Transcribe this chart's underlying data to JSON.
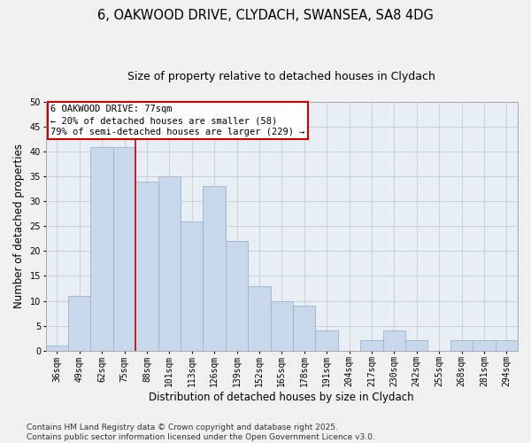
{
  "title_line1": "6, OAKWOOD DRIVE, CLYDACH, SWANSEA, SA8 4DG",
  "title_line2": "Size of property relative to detached houses in Clydach",
  "xlabel": "Distribution of detached houses by size in Clydach",
  "ylabel": "Number of detached properties",
  "categories": [
    "36sqm",
    "49sqm",
    "62sqm",
    "75sqm",
    "88sqm",
    "101sqm",
    "113sqm",
    "126sqm",
    "139sqm",
    "152sqm",
    "165sqm",
    "178sqm",
    "191sqm",
    "204sqm",
    "217sqm",
    "230sqm",
    "242sqm",
    "255sqm",
    "268sqm",
    "281sqm",
    "294sqm"
  ],
  "values": [
    1,
    11,
    41,
    41,
    34,
    35,
    26,
    33,
    22,
    13,
    10,
    9,
    4,
    0,
    2,
    4,
    2,
    0,
    2,
    2,
    2
  ],
  "bar_color": "#c8d8ea",
  "bar_edge_color": "#9ab4cc",
  "grid_color": "#c8d0d8",
  "background_color": "#e8eef4",
  "fig_background": "#f0f0f0",
  "annotation_box_color": "#cc0000",
  "property_line_color": "#cc0000",
  "annotation_line1": "6 OAKWOOD DRIVE: 77sqm",
  "annotation_line2": "← 20% of detached houses are smaller (58)",
  "annotation_line3": "79% of semi-detached houses are larger (229) →",
  "footnote_line1": "Contains HM Land Registry data © Crown copyright and database right 2025.",
  "footnote_line2": "Contains public sector information licensed under the Open Government Licence v3.0.",
  "ylim": [
    0,
    50
  ],
  "yticks": [
    0,
    5,
    10,
    15,
    20,
    25,
    30,
    35,
    40,
    45,
    50
  ],
  "property_line_x": 3.5,
  "title_fontsize": 10.5,
  "subtitle_fontsize": 9,
  "axis_label_fontsize": 8.5,
  "tick_fontsize": 7,
  "annot_fontsize": 7.5,
  "footnote_fontsize": 6.5
}
